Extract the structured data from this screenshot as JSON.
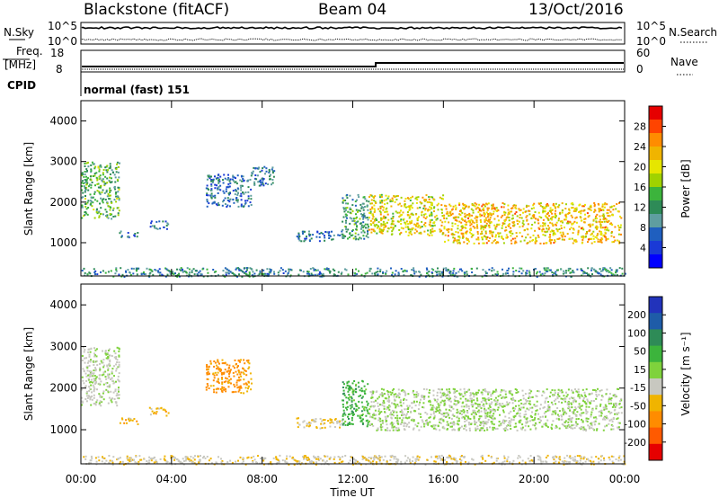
{
  "header": {
    "station": "Blackstone (fitACF)",
    "beam": "Beam 04",
    "date": "13/Oct/2016"
  },
  "status_panels": {
    "nsky_label": "N.Sky",
    "nsearch_label": "N.Search",
    "count_ticks_left": [
      "10^5",
      "10^0"
    ],
    "count_ticks_right": [
      "10^5",
      "10^0"
    ],
    "freq_label": "Freq.",
    "freq_unit": "[MHz]",
    "freq_ticks": [
      "18",
      "8"
    ],
    "nave_label": "Nave",
    "nave_ticks": [
      "60",
      "0"
    ],
    "cpid_label": "CPID",
    "cpid_value": "normal (fast) 151",
    "line_color": "#000000"
  },
  "power_colorbar": {
    "title": "Power [dB]",
    "ticks": [
      "28",
      "24",
      "20",
      "16",
      "12",
      "8",
      "4"
    ],
    "colors": [
      "#e60000",
      "#ff4400",
      "#ff8c00",
      "#f0b400",
      "#e6e600",
      "#a0d200",
      "#3cb43c",
      "#2e8b57",
      "#5f9ea0",
      "#1f5fbf",
      "#1a3ad6",
      "#0000ff"
    ]
  },
  "velocity_colorbar": {
    "title": "Velocity [m s⁻¹]",
    "ticks": [
      "200",
      "100",
      "50",
      "15",
      "-15",
      "-50",
      "-100",
      "-200"
    ],
    "colors": [
      "#2233bb",
      "#1e5ca8",
      "#2e8b57",
      "#3cb43c",
      "#7fd23c",
      "#c8c8c0",
      "#f0b400",
      "#ff8c00",
      "#ff5a00",
      "#e60000"
    ]
  },
  "axes": {
    "ylabel": "Slant Range [km]",
    "yticks": [
      "4000",
      "3000",
      "2000",
      "1000"
    ],
    "xlabel": "Time UT",
    "xticks": [
      "00:00",
      "04:00",
      "08:00",
      "12:00",
      "16:00",
      "20:00",
      "00:00"
    ]
  },
  "chart_data": [
    {
      "type": "heatmap",
      "title": "",
      "quantity": "Power [dB]",
      "xlabel": "Time UT",
      "ylabel": "Slant Range [km]",
      "xlim": [
        "00:00",
        "24:00"
      ],
      "ylim": [
        180,
        4500
      ],
      "clim": [
        0,
        32
      ],
      "features": [
        {
          "start": "00:00",
          "end": "01:40",
          "range_start_km": 1600,
          "range_end_km": 3000,
          "power_db": 14
        },
        {
          "start": "01:40",
          "end": "02:30",
          "range_start_km": 1150,
          "range_end_km": 1300,
          "power_db": 8
        },
        {
          "start": "03:00",
          "end": "03:50",
          "range_start_km": 1350,
          "range_end_km": 1550,
          "power_db": 8
        },
        {
          "start": "05:30",
          "end": "07:30",
          "range_start_km": 1900,
          "range_end_km": 2700,
          "power_db": 8
        },
        {
          "start": "07:30",
          "end": "08:30",
          "range_start_km": 2400,
          "range_end_km": 2900,
          "power_db": 8
        },
        {
          "start": "09:30",
          "end": "11:30",
          "range_start_km": 1050,
          "range_end_km": 1300,
          "power_db": 8
        },
        {
          "start": "11:30",
          "end": "12:40",
          "range_start_km": 1100,
          "range_end_km": 2200,
          "power_db": 12
        },
        {
          "start": "12:40",
          "end": "16:00",
          "range_start_km": 1200,
          "range_end_km": 2200,
          "power_db": 20
        },
        {
          "start": "16:00",
          "end": "23:50",
          "range_start_km": 1000,
          "range_end_km": 2000,
          "power_db": 22
        },
        {
          "start": "00:00",
          "end": "24:00",
          "range_start_km": 180,
          "range_end_km": 400,
          "power_db": 10
        }
      ]
    },
    {
      "type": "heatmap",
      "title": "",
      "quantity": "Velocity [m s-1]",
      "xlabel": "Time UT",
      "ylabel": "Slant Range [km]",
      "xlim": [
        "00:00",
        "24:00"
      ],
      "ylim": [
        180,
        4500
      ],
      "clim": [
        -200,
        200
      ],
      "features": [
        {
          "start": "00:00",
          "end": "01:40",
          "range_start_km": 1600,
          "range_end_km": 3000,
          "velocity_ms": -10
        },
        {
          "start": "01:40",
          "end": "02:30",
          "range_start_km": 1150,
          "range_end_km": 1300,
          "velocity_ms": -60
        },
        {
          "start": "03:00",
          "end": "03:50",
          "range_start_km": 1350,
          "range_end_km": 1550,
          "velocity_ms": -60
        },
        {
          "start": "05:30",
          "end": "07:30",
          "range_start_km": 1900,
          "range_end_km": 2700,
          "velocity_ms": -90
        },
        {
          "start": "09:30",
          "end": "11:30",
          "range_start_km": 1050,
          "range_end_km": 1300,
          "velocity_ms": -40
        },
        {
          "start": "11:30",
          "end": "12:40",
          "range_start_km": 1100,
          "range_end_km": 2200,
          "velocity_ms": 60
        },
        {
          "start": "12:40",
          "end": "23:50",
          "range_start_km": 1000,
          "range_end_km": 2000,
          "velocity_ms": 0
        },
        {
          "start": "00:00",
          "end": "24:00",
          "range_start_km": 180,
          "range_end_km": 400,
          "velocity_ms": -30
        }
      ]
    }
  ]
}
